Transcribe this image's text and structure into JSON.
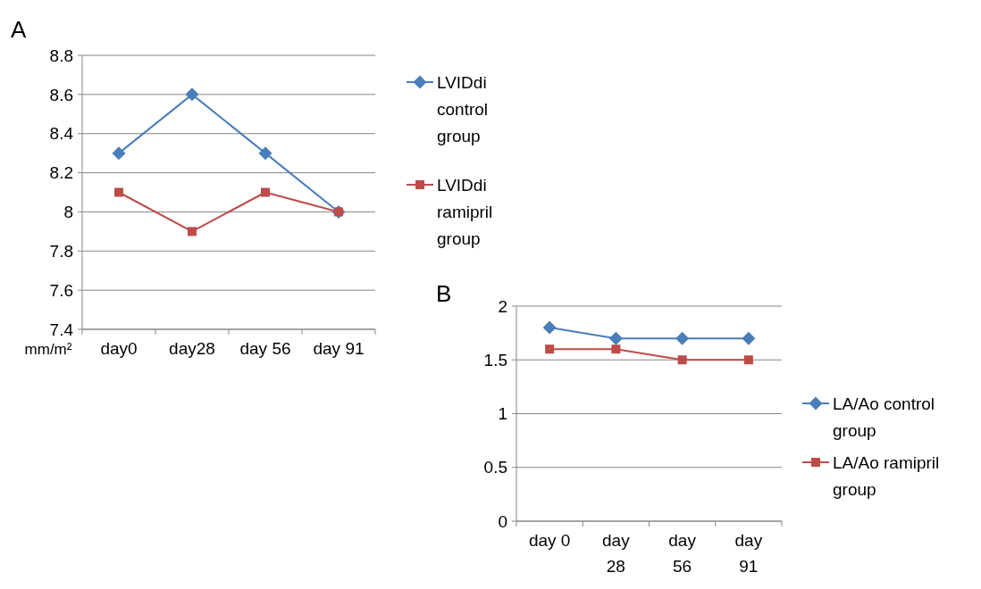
{
  "chart_data": [
    {
      "type": "line",
      "title": "A",
      "ylabel": "mm/m²",
      "categories": [
        "day0",
        "day28",
        "day 56",
        "day 91"
      ],
      "ylim": [
        7.4,
        8.8
      ],
      "yticks": [
        7.4,
        7.6,
        7.8,
        8,
        8.2,
        8.4,
        8.6,
        8.8
      ],
      "grid": "y",
      "legend": "right",
      "series": [
        {
          "name": "LVIDdi control group",
          "color": "#4a7ebb",
          "marker": "diamond",
          "values": [
            8.3,
            8.6,
            8.3,
            8.0
          ]
        },
        {
          "name": "LVIDdi ramipril group",
          "color": "#be4b48",
          "marker": "square",
          "values": [
            8.1,
            7.9,
            8.1,
            8.0
          ]
        }
      ]
    },
    {
      "type": "line",
      "title": "B",
      "categories": [
        "day 0",
        "day 28",
        "day 56",
        "day 91"
      ],
      "ylim": [
        0,
        2
      ],
      "yticks": [
        0,
        0.5,
        1,
        1.5,
        2
      ],
      "grid": "y",
      "legend": "right",
      "series": [
        {
          "name": "LA/Ao control group",
          "color": "#4a7ebb",
          "marker": "diamond",
          "values": [
            1.8,
            1.7,
            1.7,
            1.7
          ]
        },
        {
          "name": "LA/Ao ramipril group",
          "color": "#be4b48",
          "marker": "square",
          "values": [
            1.6,
            1.6,
            1.5,
            1.5
          ]
        }
      ]
    }
  ]
}
